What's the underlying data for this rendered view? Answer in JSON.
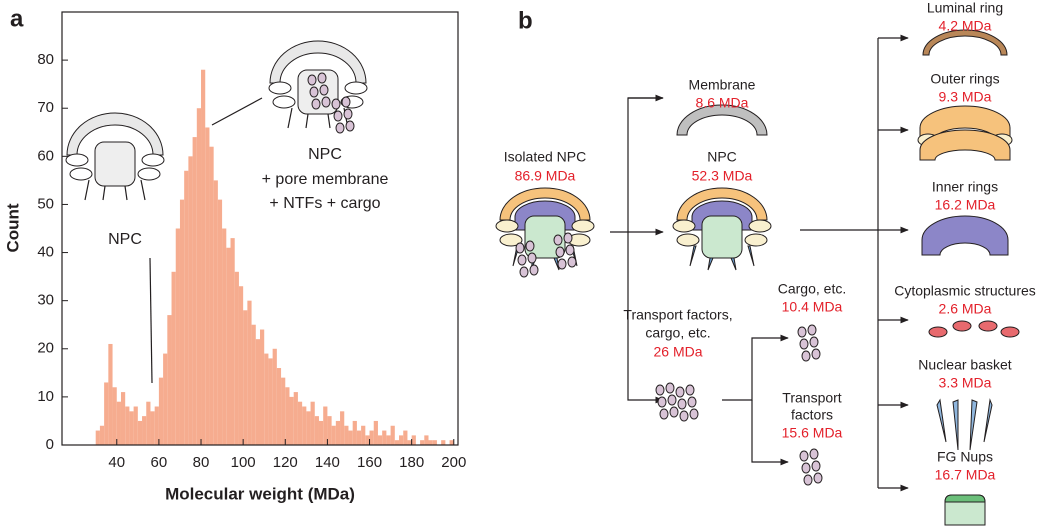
{
  "panel_labels": [
    "a",
    "b"
  ],
  "chart_data": {
    "type": "histogram",
    "xlabel": "Molecular weight (MDa)",
    "ylabel": "Count",
    "color": "#f6ac8f",
    "bins": [
      30,
      32,
      34,
      36,
      38,
      40,
      42,
      44,
      46,
      48,
      50,
      52,
      54,
      56,
      58,
      60,
      62,
      64,
      66,
      68,
      70,
      72,
      74,
      76,
      78,
      80,
      82,
      84,
      86,
      88,
      90,
      92,
      94,
      96,
      98,
      100,
      102,
      104,
      106,
      108,
      110,
      112,
      114,
      116,
      118,
      120,
      122,
      124,
      126,
      128,
      130,
      132,
      134,
      136,
      138,
      140,
      142,
      144,
      146,
      148,
      150,
      152,
      154,
      156,
      158,
      160,
      162,
      164,
      166,
      168,
      170,
      172,
      174,
      176,
      178,
      180,
      182,
      184,
      186,
      188,
      190,
      192,
      194,
      196,
      198,
      200
    ],
    "values": [
      3,
      4,
      13,
      21,
      12,
      9,
      11,
      8,
      7,
      8,
      5,
      6,
      9,
      7,
      8,
      14,
      19,
      27,
      36,
      45,
      51,
      57,
      60,
      64,
      70,
      78,
      66,
      62,
      55,
      51,
      45,
      41,
      43,
      36,
      33,
      28,
      30,
      25,
      22,
      24,
      19,
      18,
      20,
      16,
      14,
      12,
      10,
      11,
      9,
      8,
      7,
      9,
      6,
      5,
      8,
      6,
      4,
      5,
      7,
      4,
      3,
      5,
      3,
      4,
      2,
      3,
      5,
      2,
      3,
      2,
      4,
      1,
      2,
      3,
      1,
      2,
      0,
      1,
      2,
      1,
      1,
      0,
      1,
      0,
      1
    ],
    "xlim": [
      14,
      202
    ],
    "ylim": [
      0,
      90
    ],
    "xticks": [
      40,
      60,
      80,
      100,
      120,
      140,
      160,
      180,
      200
    ],
    "yticks": [
      0,
      10,
      20,
      30,
      40,
      50,
      60,
      70,
      80
    ],
    "annotations": [
      [
        "NPC"
      ],
      [
        "NPC",
        "+ pore membrane",
        "+ NTFs + cargo"
      ]
    ]
  },
  "diagram": {
    "nodes": [
      {
        "label": [
          "Isolated NPC"
        ],
        "mass": "86.9 MDa"
      },
      {
        "label": [
          "Membrane"
        ],
        "mass": "8.6 MDa"
      },
      {
        "label": [
          "NPC"
        ],
        "mass": "52.3 MDa"
      },
      {
        "label": [
          "Transport factors,",
          "cargo, etc."
        ],
        "mass": "26 MDa"
      },
      {
        "label": [
          "Cargo, etc."
        ],
        "mass": "10.4 MDa"
      },
      {
        "label": [
          "Transport",
          "factors"
        ],
        "mass": "15.6 MDa"
      },
      {
        "label": [
          "Luminal ring"
        ],
        "mass": "4.2 MDa"
      },
      {
        "label": [
          "Outer rings"
        ],
        "mass": "9.3 MDa"
      },
      {
        "label": [
          "Inner rings"
        ],
        "mass": "16.2 MDa"
      },
      {
        "label": [
          "Cytoplasmic structures"
        ],
        "mass": "2.6 MDa"
      },
      {
        "label": [
          "Nuclear basket"
        ],
        "mass": "3.3 MDa"
      },
      {
        "label": [
          "FG Nups"
        ],
        "mass": "16.7 MDa"
      }
    ]
  }
}
